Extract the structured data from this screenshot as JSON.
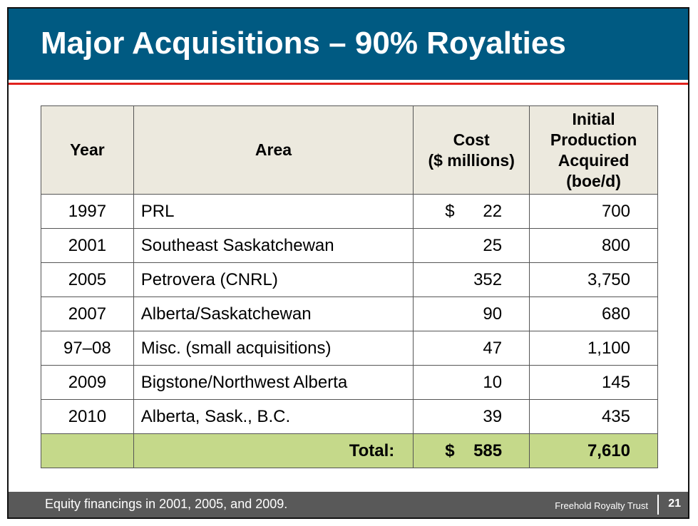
{
  "title": "Major Acquisitions – 90% Royalties",
  "table": {
    "headers": {
      "year": "Year",
      "area": "Area",
      "cost_line1": "Cost",
      "cost_line2": "($ millions)",
      "prod_line1": "Initial",
      "prod_line2": "Production",
      "prod_line3": "Acquired",
      "prod_line4": "(boe/d)"
    },
    "rows": [
      {
        "year": "1997",
        "area": "PRL",
        "cost_prefix": "$",
        "cost": "22",
        "production": "700"
      },
      {
        "year": "2001",
        "area": "Southeast Saskatchewan",
        "cost_prefix": "",
        "cost": "25",
        "production": "800"
      },
      {
        "year": "2005",
        "area": "Petrovera (CNRL)",
        "cost_prefix": "",
        "cost": "352",
        "production": "3,750"
      },
      {
        "year": "2007",
        "area": "Alberta/Saskatchewan",
        "cost_prefix": "",
        "cost": "90",
        "production": "680"
      },
      {
        "year": "97–08",
        "area": "Misc. (small acquisitions)",
        "cost_prefix": "",
        "cost": "47",
        "production": "1,100"
      },
      {
        "year": "2009",
        "area": "Bigstone/Northwest Alberta",
        "cost_prefix": "",
        "cost": "10",
        "production": "145"
      },
      {
        "year": "2010",
        "area": "Alberta, Sask., B.C.",
        "cost_prefix": "",
        "cost": "39",
        "production": "435"
      }
    ],
    "total": {
      "label": "Total:",
      "cost_prefix": "$",
      "cost": "585",
      "production": "7,610"
    }
  },
  "footer": {
    "note": "Equity financings in 2001, 2005, and 2009.",
    "organization": "Freehold Royalty Trust",
    "page_number": "21"
  },
  "colors": {
    "title_bar": "#005a82",
    "accent_rule": "#e0211d",
    "header_fill": "#ece9de",
    "total_fill": "#c5d98a",
    "footer_bar": "#595959"
  }
}
